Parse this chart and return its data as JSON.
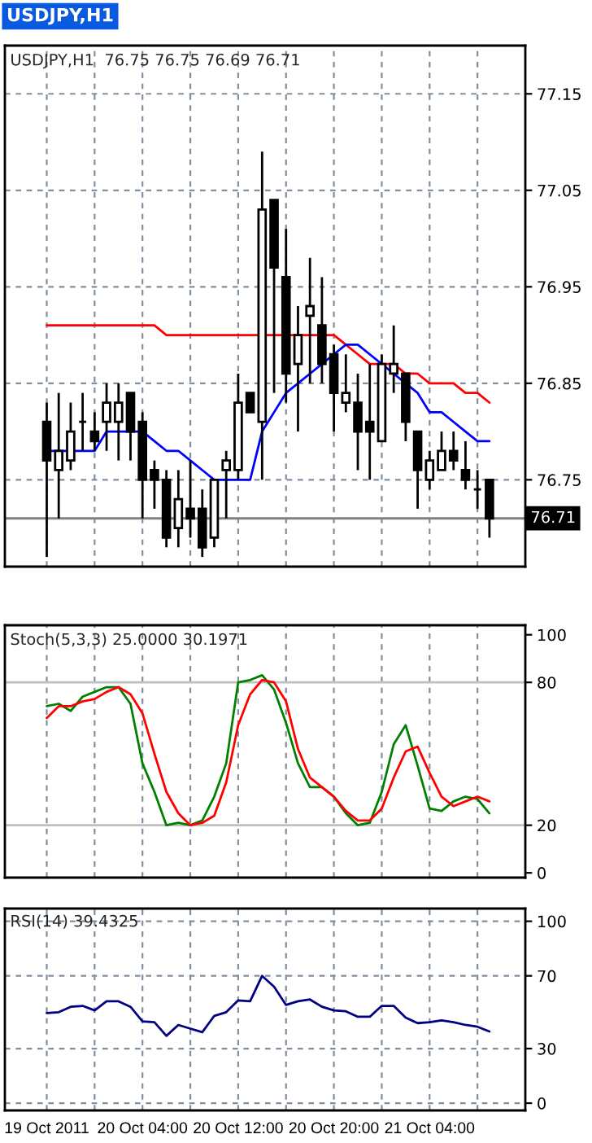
{
  "chart_data": [
    {
      "type": "candlestick",
      "title": "USDJPY,H1",
      "subtitle": "USDJPY,H1  76.75 76.75 76.69 76.71",
      "x": [
        "2011-10-19T20:00",
        "2011-10-19T21:00",
        "2011-10-19T22:00",
        "2011-10-19T23:00",
        "2011-10-20T00:00",
        "2011-10-20T01:00",
        "2011-10-20T02:00",
        "2011-10-20T03:00",
        "2011-10-20T04:00",
        "2011-10-20T05:00",
        "2011-10-20T06:00",
        "2011-10-20T07:00",
        "2011-10-20T08:00",
        "2011-10-20T09:00",
        "2011-10-20T10:00",
        "2011-10-20T11:00",
        "2011-10-20T12:00",
        "2011-10-20T13:00",
        "2011-10-20T14:00",
        "2011-10-20T15:00",
        "2011-10-20T16:00",
        "2011-10-20T17:00",
        "2011-10-20T18:00",
        "2011-10-20T19:00",
        "2011-10-20T20:00",
        "2011-10-20T21:00",
        "2011-10-20T22:00",
        "2011-10-20T23:00",
        "2011-10-21T00:00",
        "2011-10-21T01:00",
        "2011-10-21T02:00",
        "2011-10-21T03:00",
        "2011-10-21T04:00",
        "2011-10-21T05:00",
        "2011-10-21T06:00",
        "2011-10-21T07:00",
        "2011-10-21T08:00",
        "2011-10-21T09:00"
      ],
      "ohlc": [
        [
          76.81,
          76.83,
          76.67,
          76.77
        ],
        [
          76.76,
          76.84,
          76.71,
          76.78
        ],
        [
          76.77,
          76.83,
          76.76,
          76.8
        ],
        [
          76.81,
          76.84,
          76.78,
          76.81
        ],
        [
          76.8,
          76.82,
          76.78,
          76.79
        ],
        [
          76.81,
          76.85,
          76.78,
          76.83
        ],
        [
          76.81,
          76.85,
          76.77,
          76.83
        ],
        [
          76.84,
          76.84,
          76.77,
          76.8
        ],
        [
          76.81,
          76.82,
          76.71,
          76.75
        ],
        [
          76.76,
          76.77,
          76.72,
          76.75
        ],
        [
          76.75,
          76.76,
          76.68,
          76.69
        ],
        [
          76.7,
          76.76,
          76.68,
          76.73
        ],
        [
          76.72,
          76.77,
          76.69,
          76.71
        ],
        [
          76.72,
          76.74,
          76.67,
          76.68
        ],
        [
          76.69,
          76.75,
          76.68,
          76.75
        ],
        [
          76.76,
          76.78,
          76.71,
          76.77
        ],
        [
          76.76,
          76.86,
          76.75,
          76.83
        ],
        [
          76.84,
          76.84,
          76.82,
          76.82
        ],
        [
          76.81,
          77.09,
          76.75,
          77.03
        ],
        [
          77.04,
          77.04,
          76.84,
          76.97
        ],
        [
          76.96,
          77.01,
          76.83,
          76.86
        ],
        [
          76.87,
          76.93,
          76.8,
          76.9
        ],
        [
          76.92,
          76.98,
          76.85,
          76.93
        ],
        [
          76.91,
          76.96,
          76.85,
          76.87
        ],
        [
          76.88,
          76.89,
          76.8,
          76.84
        ],
        [
          76.83,
          76.88,
          76.82,
          76.84
        ],
        [
          76.83,
          76.86,
          76.76,
          76.8
        ],
        [
          76.81,
          76.87,
          76.75,
          76.8
        ],
        [
          76.79,
          76.88,
          76.79,
          76.87
        ],
        [
          76.86,
          76.91,
          76.84,
          76.87
        ],
        [
          76.86,
          76.86,
          76.79,
          76.81
        ],
        [
          76.8,
          76.8,
          76.72,
          76.76
        ],
        [
          76.75,
          76.78,
          76.74,
          76.77
        ],
        [
          76.76,
          76.8,
          76.76,
          76.78
        ],
        [
          76.78,
          76.8,
          76.76,
          76.77
        ],
        [
          76.76,
          76.79,
          76.74,
          76.75
        ],
        [
          76.74,
          76.76,
          76.72,
          76.74
        ],
        [
          76.75,
          76.75,
          76.69,
          76.71
        ]
      ],
      "series": [
        {
          "type": "line",
          "color": "#ff0000",
          "values": [
            76.91,
            76.91,
            76.91,
            76.91,
            76.91,
            76.91,
            76.91,
            76.91,
            76.91,
            76.91,
            76.9,
            76.9,
            76.9,
            76.9,
            76.9,
            76.9,
            76.9,
            76.9,
            76.9,
            76.9,
            76.9,
            76.9,
            76.9,
            76.9,
            76.9,
            76.89,
            76.88,
            76.87,
            76.87,
            76.87,
            76.86,
            76.86,
            76.85,
            76.85,
            76.85,
            76.84,
            76.84,
            76.83
          ]
        },
        {
          "type": "line",
          "color": "#0000ff",
          "values": [
            76.78,
            76.78,
            76.78,
            76.78,
            76.78,
            76.8,
            76.8,
            76.8,
            76.8,
            76.79,
            76.78,
            76.78,
            76.77,
            76.76,
            76.75,
            76.75,
            76.75,
            76.75,
            76.8,
            76.82,
            76.84,
            76.85,
            76.86,
            76.87,
            76.88,
            76.89,
            76.89,
            76.88,
            76.87,
            76.86,
            76.85,
            76.84,
            76.82,
            76.82,
            76.81,
            76.8,
            76.79,
            76.79
          ]
        }
      ],
      "xlim": [
        "2011-10-19T16:30",
        "2011-10-21T12:00"
      ],
      "xticks": [
        {
          "value": "2011-10-19T20:00",
          "label": null
        },
        {
          "value": "2011-10-20T00:00",
          "label": null
        },
        {
          "value": "2011-10-20T04:00",
          "label": null
        },
        {
          "value": "2011-10-20T08:00",
          "label": null
        },
        {
          "value": "2011-10-20T12:00",
          "label": null
        },
        {
          "value": "2011-10-20T16:00",
          "label": null
        },
        {
          "value": "2011-10-20T20:00",
          "label": null
        },
        {
          "value": "2011-10-21T00:00",
          "label": null
        },
        {
          "value": "2011-10-21T04:00",
          "label": null
        },
        {
          "value": "2011-10-21T08:00",
          "label": null
        }
      ],
      "ylim": [
        76.66,
        77.2
      ],
      "yticks": [
        76.75,
        76.85,
        76.95,
        77.05,
        77.15
      ],
      "grid": true,
      "tick_labels": "y",
      "ref_lines": [
        {
          "axis": "y",
          "value": 76.71,
          "label": "76.71",
          "color": "#808080"
        }
      ]
    },
    {
      "type": "line",
      "title": "Stoch(5,3,3) 25.0000 30.1971",
      "x": [
        "2011-10-19T20:00",
        "2011-10-19T21:00",
        "2011-10-19T22:00",
        "2011-10-19T23:00",
        "2011-10-20T00:00",
        "2011-10-20T01:00",
        "2011-10-20T02:00",
        "2011-10-20T03:00",
        "2011-10-20T04:00",
        "2011-10-20T05:00",
        "2011-10-20T06:00",
        "2011-10-20T07:00",
        "2011-10-20T08:00",
        "2011-10-20T09:00",
        "2011-10-20T10:00",
        "2011-10-20T11:00",
        "2011-10-20T12:00",
        "2011-10-20T13:00",
        "2011-10-20T14:00",
        "2011-10-20T15:00",
        "2011-10-20T16:00",
        "2011-10-20T17:00",
        "2011-10-20T18:00",
        "2011-10-20T19:00",
        "2011-10-20T20:00",
        "2011-10-20T21:00",
        "2011-10-20T22:00",
        "2011-10-20T23:00",
        "2011-10-21T00:00",
        "2011-10-21T01:00",
        "2011-10-21T02:00",
        "2011-10-21T03:00",
        "2011-10-21T04:00",
        "2011-10-21T05:00",
        "2011-10-21T06:00",
        "2011-10-21T07:00",
        "2011-10-21T08:00",
        "2011-10-21T09:00"
      ],
      "series": [
        {
          "color": "#008000",
          "values": [
            70,
            71,
            68,
            74,
            76,
            78,
            78,
            71,
            46,
            34,
            20,
            21,
            20,
            22,
            32,
            46,
            80,
            81,
            83,
            77,
            63,
            46,
            36,
            36,
            32,
            25,
            20,
            21,
            34,
            54,
            62,
            45,
            27,
            26,
            30,
            32,
            31,
            25
          ]
        },
        {
          "color": "#ff0000",
          "values": [
            65,
            70,
            70,
            72,
            73,
            76,
            78,
            75,
            67,
            50,
            34,
            25,
            20,
            21,
            24,
            38,
            62,
            75,
            81,
            80,
            72,
            52,
            40,
            36,
            32,
            26,
            22,
            22,
            27,
            40,
            51,
            53,
            42,
            32,
            28,
            30,
            32,
            30
          ]
        }
      ],
      "xlim": [
        "2011-10-19T16:30",
        "2011-10-21T12:00"
      ],
      "xticks": [
        {
          "value": "2011-10-19T20:00",
          "label": null
        },
        {
          "value": "2011-10-20T00:00",
          "label": null
        },
        {
          "value": "2011-10-20T04:00",
          "label": null
        },
        {
          "value": "2011-10-20T08:00",
          "label": null
        },
        {
          "value": "2011-10-20T12:00",
          "label": null
        },
        {
          "value": "2011-10-20T16:00",
          "label": null
        },
        {
          "value": "2011-10-20T20:00",
          "label": null
        },
        {
          "value": "2011-10-21T00:00",
          "label": null
        },
        {
          "value": "2011-10-21T04:00",
          "label": null
        },
        {
          "value": "2011-10-21T08:00",
          "label": null
        }
      ],
      "ylim": [
        -2,
        104
      ],
      "yticks": [
        0,
        20,
        80,
        100
      ],
      "grid": "x",
      "tick_labels": "y",
      "ref_lines": [
        {
          "axis": "y",
          "value": 20,
          "color": "#c0c0c0"
        },
        {
          "axis": "y",
          "value": 80,
          "color": "#c0c0c0"
        }
      ]
    },
    {
      "type": "line",
      "title": "RSI(14) 39.4325",
      "x": [
        "2011-10-19T20:00",
        "2011-10-19T21:00",
        "2011-10-19T22:00",
        "2011-10-19T23:00",
        "2011-10-20T00:00",
        "2011-10-20T01:00",
        "2011-10-20T02:00",
        "2011-10-20T03:00",
        "2011-10-20T04:00",
        "2011-10-20T05:00",
        "2011-10-20T06:00",
        "2011-10-20T07:00",
        "2011-10-20T08:00",
        "2011-10-20T09:00",
        "2011-10-20T10:00",
        "2011-10-20T11:00",
        "2011-10-20T12:00",
        "2011-10-20T13:00",
        "2011-10-20T14:00",
        "2011-10-20T15:00",
        "2011-10-20T16:00",
        "2011-10-20T17:00",
        "2011-10-20T18:00",
        "2011-10-20T19:00",
        "2011-10-20T20:00",
        "2011-10-20T21:00",
        "2011-10-20T22:00",
        "2011-10-20T23:00",
        "2011-10-21T00:00",
        "2011-10-21T01:00",
        "2011-10-21T02:00",
        "2011-10-21T03:00",
        "2011-10-21T04:00",
        "2011-10-21T05:00",
        "2011-10-21T06:00",
        "2011-10-21T07:00",
        "2011-10-21T08:00",
        "2011-10-21T09:00"
      ],
      "series": [
        {
          "color": "#000080",
          "values": [
            49.5,
            50,
            53,
            53.5,
            51,
            56,
            56,
            53,
            45,
            44.5,
            37,
            43,
            41,
            39,
            48,
            50,
            56.5,
            56,
            70,
            64,
            54,
            56,
            57,
            53,
            51,
            50.5,
            47.5,
            47.5,
            53.5,
            53.5,
            47,
            44,
            44.5,
            45.5,
            44.5,
            43,
            42,
            39.4
          ]
        }
      ],
      "xlim": [
        "2011-10-19T16:30",
        "2011-10-21T12:00"
      ],
      "xticks": [
        {
          "value": "2011-10-19T20:00",
          "label": "19 Oct 2011"
        },
        {
          "value": "2011-10-20T00:00",
          "label": null
        },
        {
          "value": "2011-10-20T04:00",
          "label": "20 Oct 04:00"
        },
        {
          "value": "2011-10-20T08:00",
          "label": null
        },
        {
          "value": "2011-10-20T12:00",
          "label": "20 Oct 12:00"
        },
        {
          "value": "2011-10-20T16:00",
          "label": null
        },
        {
          "value": "2011-10-20T20:00",
          "label": "20 Oct 20:00"
        },
        {
          "value": "2011-10-21T00:00",
          "label": null
        },
        {
          "value": "2011-10-21T04:00",
          "label": "21 Oct 04:00"
        },
        {
          "value": "2011-10-21T08:00",
          "label": null
        }
      ],
      "ylim": [
        -4,
        107
      ],
      "yticks": [
        0,
        30,
        70,
        100
      ],
      "grid": true
    }
  ]
}
